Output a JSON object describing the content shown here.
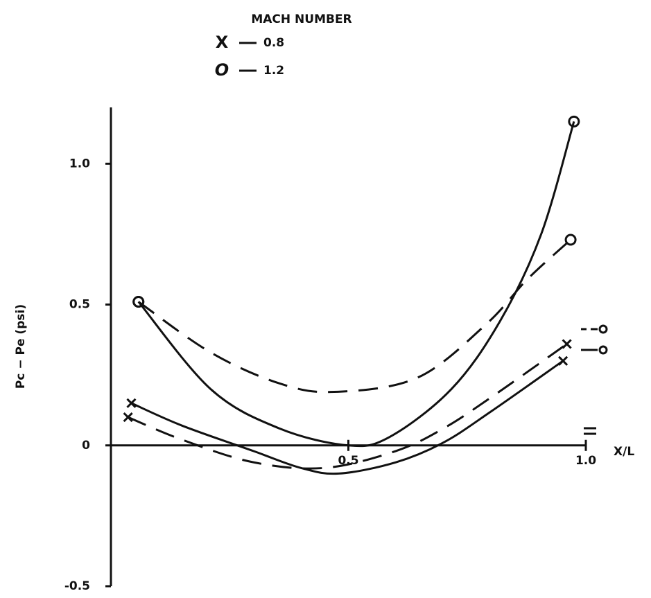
{
  "chart_data": {
    "type": "line",
    "legend": {
      "title": "MACH NUMBER",
      "entries": [
        {
          "symbol": "X",
          "label": "0.8"
        },
        {
          "symbol": "O",
          "label": "1.2"
        }
      ]
    },
    "xlabel": "X/L",
    "ylabel": "Pc − Pe (psi)",
    "xlim": [
      0,
      1
    ],
    "xticks": [
      0.5,
      {
        "value": 1,
        "label": "1.0"
      }
    ],
    "ylim": [
      -0.5,
      1.2
    ],
    "yticks": [
      -0.5,
      0,
      0.5,
      {
        "value": 1,
        "label": "1.0"
      }
    ],
    "color": "#111111",
    "series": [
      {
        "name": "1.2",
        "style": "solid",
        "marker": "o",
        "x": [
          0.058,
          0.21,
          0.355,
          0.5,
          0.587,
          0.717,
          0.819,
          0.906,
          0.975
        ],
        "values": [
          0.51,
          0.2,
          0.06,
          0,
          0.03,
          0.2,
          0.44,
          0.75,
          1.15
        ]
      },
      {
        "name": "1.2",
        "style": "dashed",
        "marker": "o",
        "x": [
          0.058,
          0.21,
          0.355,
          0.47,
          0.645,
          0.79,
          0.877,
          0.968
        ],
        "values": [
          0.51,
          0.33,
          0.22,
          0.19,
          0.24,
          0.43,
          0.59,
          0.73
        ]
      },
      {
        "name": "0.8",
        "style": "solid",
        "marker": "x",
        "x": [
          0.043,
          0.15,
          0.3,
          0.4,
          0.48,
          0.6,
          0.7,
          0.8,
          0.952
        ],
        "values": [
          0.15,
          0.07,
          -0.02,
          -0.08,
          -0.1,
          -0.06,
          0.01,
          0.12,
          0.3
        ]
      },
      {
        "name": "0.8",
        "style": "dashed",
        "marker": "x",
        "x": [
          0.036,
          0.15,
          0.3,
          0.45,
          0.6,
          0.7,
          0.8,
          0.96
        ],
        "values": [
          0.1,
          0.02,
          -0.06,
          -0.08,
          -0.02,
          0.06,
          0.17,
          0.36
        ]
      }
    ]
  }
}
